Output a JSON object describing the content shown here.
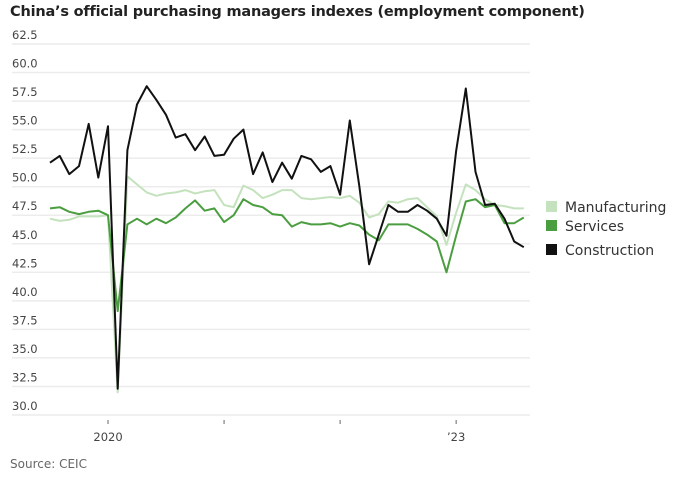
{
  "chart_data": {
    "type": "line",
    "title": "China’s official purchasing managers indexes (employment component)",
    "source": "Source: CEIC",
    "x_start": "2019-07",
    "x_end": "2023-08",
    "x_frequency": "monthly",
    "x_ticks": [
      {
        "date": "2020-01",
        "label": "2020"
      },
      {
        "date": "2021-01",
        "label": ""
      },
      {
        "date": "2022-01",
        "label": ""
      },
      {
        "date": "2023-01",
        "label": "’23"
      }
    ],
    "y_ticks": [
      "30.0",
      "32.5",
      "35.0",
      "37.5",
      "40.0",
      "42.5",
      "45.0",
      "47.5",
      "50.0",
      "52.5",
      "55.0",
      "57.5",
      "60.0",
      "62.5"
    ],
    "ylim": [
      30,
      62.5
    ],
    "grid": true,
    "legend_position": "right",
    "series": [
      {
        "name": "Manufacturing",
        "color": "#c4e2bd",
        "values": [
          47.2,
          47.0,
          47.1,
          47.4,
          47.4,
          47.4,
          47.5,
          32.0,
          50.9,
          50.2,
          49.5,
          49.2,
          49.4,
          49.5,
          49.7,
          49.4,
          49.6,
          49.7,
          48.4,
          48.2,
          50.1,
          49.7,
          49.0,
          49.3,
          49.7,
          49.7,
          49.0,
          48.9,
          49.0,
          49.1,
          49.0,
          49.2,
          48.6,
          47.3,
          47.6,
          48.7,
          48.6,
          48.9,
          49.0,
          48.2,
          47.4,
          44.9,
          47.7,
          50.2,
          49.7,
          48.9,
          48.4,
          48.3,
          48.1,
          48.1
        ]
      },
      {
        "name": "Services",
        "color": "#4b9e40",
        "values": [
          48.1,
          48.2,
          47.8,
          47.6,
          47.8,
          47.9,
          47.5,
          39.1,
          46.7,
          47.2,
          46.7,
          47.2,
          46.8,
          47.3,
          48.1,
          48.8,
          47.9,
          48.1,
          46.9,
          47.5,
          48.9,
          48.4,
          48.2,
          47.6,
          47.5,
          46.5,
          46.9,
          46.7,
          46.7,
          46.8,
          46.5,
          46.8,
          46.6,
          45.8,
          45.3,
          46.7,
          46.7,
          46.7,
          46.3,
          45.8,
          45.2,
          42.5,
          45.7,
          48.7,
          48.9,
          48.2,
          48.4,
          46.8,
          46.8,
          47.3
        ]
      },
      {
        "name": "Construction",
        "color": "#111111",
        "values": [
          52.1,
          52.7,
          51.1,
          51.8,
          55.5,
          50.8,
          55.3,
          32.3,
          53.2,
          57.2,
          58.8,
          57.6,
          56.3,
          54.3,
          54.6,
          53.2,
          54.4,
          52.7,
          52.8,
          54.2,
          55.0,
          51.1,
          53.0,
          50.4,
          52.1,
          50.7,
          52.7,
          52.4,
          51.3,
          51.8,
          49.3,
          55.8,
          50.0,
          43.2,
          45.8,
          48.4,
          47.8,
          47.8,
          48.4,
          47.9,
          47.2,
          45.7,
          53.1,
          58.6,
          51.3,
          48.4,
          48.5,
          47.2,
          45.2,
          44.7
        ]
      }
    ]
  }
}
